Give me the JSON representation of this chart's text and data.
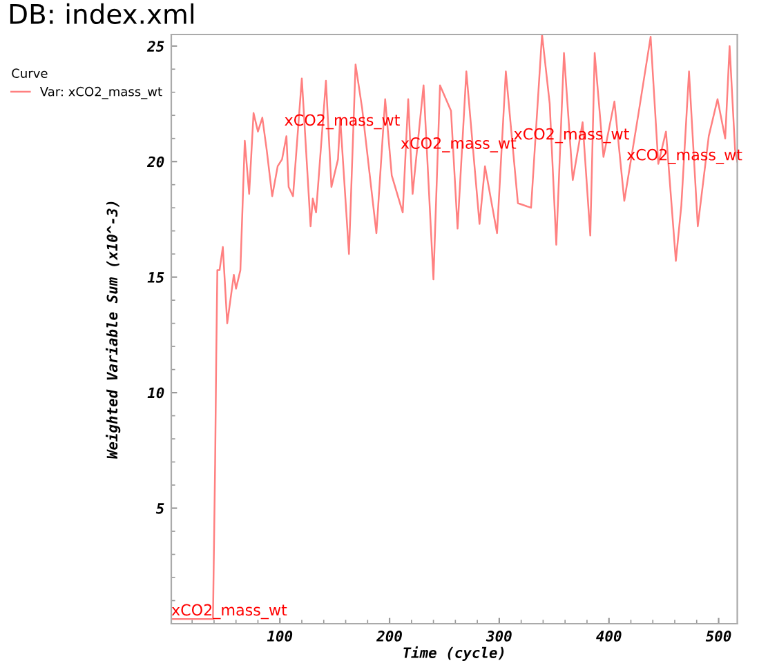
{
  "chart_data": {
    "type": "line",
    "title": "DB: index.xml",
    "xlabel": "Time (cycle)",
    "ylabel": "Weighted Variable Sum (x10^-3)",
    "legend_title": "Curve",
    "x": [
      1,
      39,
      41,
      42,
      43,
      45,
      48,
      52,
      58,
      60,
      64,
      68,
      72,
      76,
      80,
      84,
      88,
      93,
      98,
      102,
      106,
      108,
      112,
      120,
      128,
      130,
      133,
      142,
      147,
      153,
      155,
      163,
      169,
      175,
      188,
      196,
      202,
      212,
      217,
      221,
      231,
      240,
      246,
      256,
      262,
      270,
      282,
      287,
      298,
      306,
      317,
      329,
      339,
      346,
      352,
      359,
      367,
      376,
      383,
      387,
      395,
      405,
      414,
      427,
      438,
      445,
      452,
      461,
      466,
      473,
      481,
      491,
      499,
      506,
      510,
      515,
      517
    ],
    "series": [
      {
        "name": "Var: xCO2_mass_wt",
        "color": "#ff8080",
        "values": [
          0.2,
          0.2,
          7.0,
          11.6,
          15.3,
          15.3,
          16.3,
          13.0,
          15.1,
          14.5,
          15.3,
          20.9,
          18.6,
          22.1,
          21.3,
          21.9,
          20.5,
          18.5,
          19.8,
          20.1,
          21.1,
          18.9,
          18.5,
          23.6,
          17.2,
          18.4,
          17.8,
          23.5,
          18.9,
          20.1,
          21.9,
          16.0,
          24.2,
          22.3,
          16.9,
          22.7,
          19.4,
          17.8,
          22.7,
          18.6,
          23.3,
          14.9,
          23.3,
          22.2,
          17.1,
          23.9,
          17.3,
          19.8,
          16.9,
          23.9,
          18.2,
          18.0,
          25.5,
          22.5,
          16.4,
          24.7,
          19.2,
          21.7,
          16.8,
          24.7,
          20.2,
          22.6,
          18.3,
          22.1,
          25.4,
          19.9,
          21.3,
          15.7,
          18.1,
          23.9,
          17.2,
          21.1,
          22.7,
          21.0,
          25.0,
          20.5,
          20.0
        ]
      }
    ],
    "annotations": [
      {
        "text": "xCO2_mass_wt",
        "x": 1,
        "y": 0.2
      },
      {
        "text": "xCO2_mass_wt",
        "x": 104,
        "y": 21.4
      },
      {
        "text": "xCO2_mass_wt",
        "x": 210,
        "y": 20.4
      },
      {
        "text": "xCO2_mass_wt",
        "x": 313,
        "y": 20.8
      },
      {
        "text": "xCO2_mass_wt",
        "x": 416,
        "y": 19.9
      }
    ],
    "xlim": [
      1,
      517
    ],
    "ylim": [
      0,
      25.5
    ],
    "xticks": [
      100,
      200,
      300,
      400,
      500
    ],
    "yticks": [
      5,
      10,
      15,
      20,
      25
    ],
    "grid": false,
    "legend": "top left",
    "marker": "none",
    "line_style": "solid"
  }
}
